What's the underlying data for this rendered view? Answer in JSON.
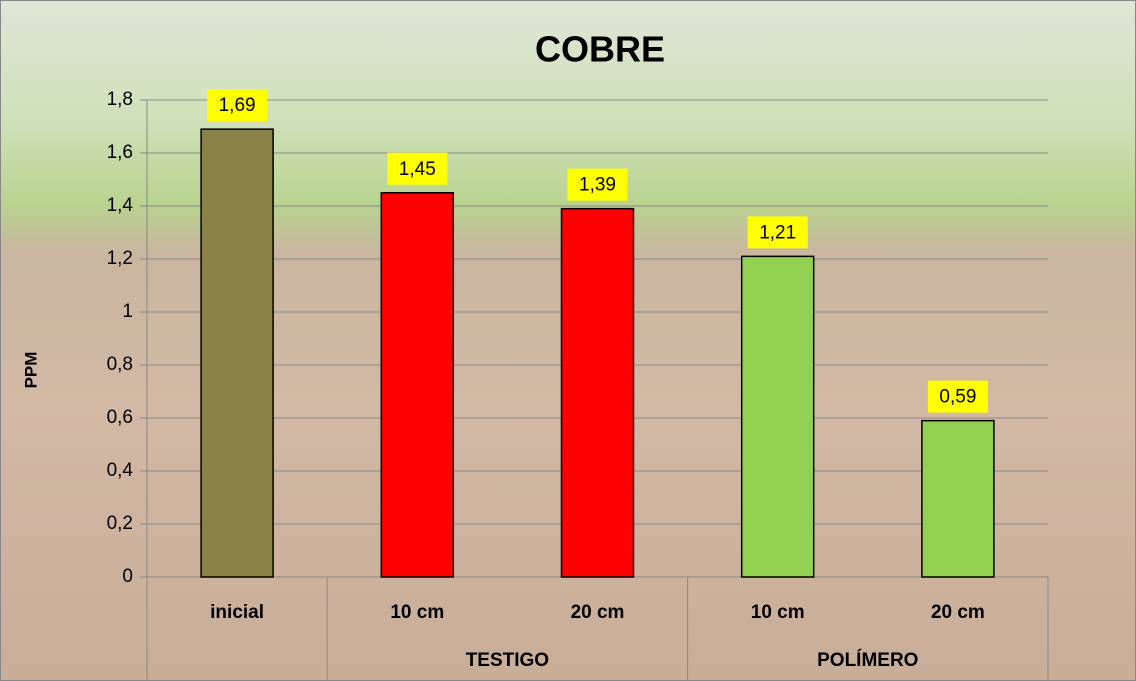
{
  "chart_data": {
    "type": "bar",
    "title": "COBRE",
    "y_label": "PPM",
    "categories": [
      "inicial",
      "10 cm",
      "20 cm",
      "10 cm",
      "20 cm"
    ],
    "group_of_category": [
      null,
      "TESTIGO",
      "TESTIGO",
      "POLÍMERO",
      "POLÍMERO"
    ],
    "values": [
      1.69,
      1.45,
      1.39,
      1.21,
      0.59
    ],
    "value_labels": [
      "1,69",
      "1,45",
      "1,39",
      "1,21",
      "0,59"
    ],
    "colors": [
      "#8b8248",
      "#ff0000",
      "#ff0000",
      "#92d050",
      "#92d050"
    ],
    "label_background": "#ffff00",
    "ylim": [
      0,
      1.8
    ],
    "yticks": [
      0,
      {
        "value": 0.2,
        "label": "0,2"
      },
      {
        "value": 0.4,
        "label": "0,4"
      },
      {
        "value": 0.6,
        "label": "0,6"
      },
      {
        "value": 0.8,
        "label": "0,8"
      },
      1,
      {
        "value": 1.2,
        "label": "1,2"
      },
      {
        "value": 1.4,
        "label": "1,4"
      },
      {
        "value": 1.6,
        "label": "1,6"
      },
      {
        "value": 1.8,
        "label": "1,8"
      }
    ],
    "grid": true
  }
}
